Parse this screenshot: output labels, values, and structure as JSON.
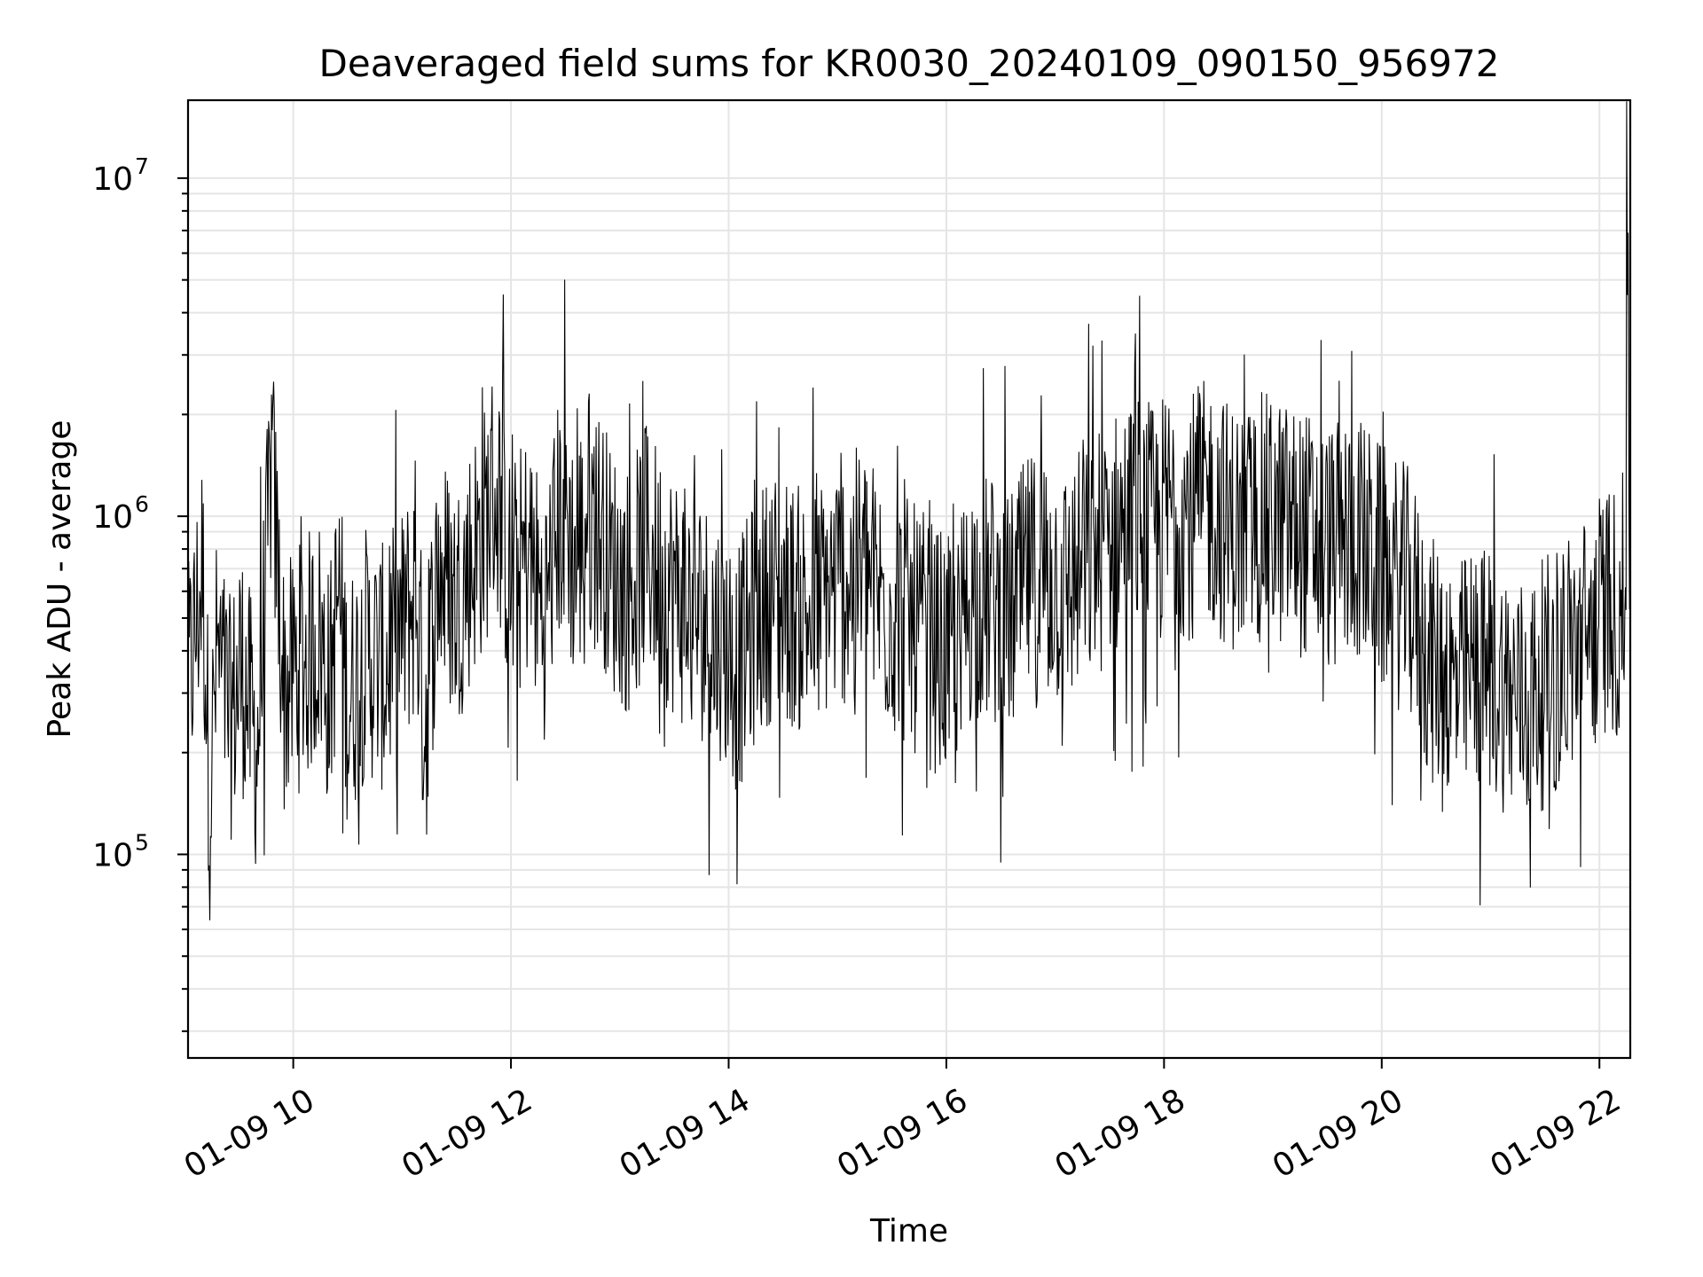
{
  "chart_data": {
    "type": "line",
    "title": "Deaveraged field sums for KR0030_20240109_090150_956972",
    "xlabel": "Time",
    "ylabel": "Peak ADU - average",
    "y_scale": "log",
    "ylim": [
      25000,
      17000000
    ],
    "xlim": [
      "2024-01-09 09:02",
      "2024-01-09 22:17"
    ],
    "grid": true,
    "x_ticks": [
      {
        "t": "2024-01-09 10:00",
        "label": "01-09 10"
      },
      {
        "t": "2024-01-09 12:00",
        "label": "01-09 12"
      },
      {
        "t": "2024-01-09 14:00",
        "label": "01-09 14"
      },
      {
        "t": "2024-01-09 16:00",
        "label": "01-09 16"
      },
      {
        "t": "2024-01-09 18:00",
        "label": "01-09 18"
      },
      {
        "t": "2024-01-09 20:00",
        "label": "01-09 20"
      },
      {
        "t": "2024-01-09 22:00",
        "label": "01-09 22"
      }
    ],
    "y_ticks": [
      {
        "value": 100000,
        "base": "10",
        "exp": "5"
      },
      {
        "value": 1000000,
        "base": "10",
        "exp": "6"
      },
      {
        "value": 10000000,
        "base": "10",
        "exp": "7"
      }
    ],
    "series": [
      {
        "color": "#000000",
        "x": [
          "2024-01-09 09:02",
          "2024-01-09 09:10",
          "2024-01-09 09:14",
          "2024-01-09 09:18",
          "2024-01-09 09:25",
          "2024-01-09 09:32",
          "2024-01-09 09:40",
          "2024-01-09 09:44",
          "2024-01-09 09:48",
          "2024-01-09 09:55",
          "2024-01-09 10:02",
          "2024-01-09 10:10",
          "2024-01-09 10:14",
          "2024-01-09 10:20",
          "2024-01-09 10:25",
          "2024-01-09 10:30",
          "2024-01-09 10:40",
          "2024-01-09 10:50",
          "2024-01-09 11:00",
          "2024-01-09 11:08",
          "2024-01-09 11:12",
          "2024-01-09 11:20",
          "2024-01-09 11:30",
          "2024-01-09 11:40",
          "2024-01-09 11:45",
          "2024-01-09 11:50",
          "2024-01-09 11:55",
          "2024-01-09 12:00",
          "2024-01-09 12:10",
          "2024-01-09 12:18",
          "2024-01-09 12:25",
          "2024-01-09 12:30",
          "2024-01-09 12:35",
          "2024-01-09 12:42",
          "2024-01-09 12:50",
          "2024-01-09 12:55",
          "2024-01-09 13:05",
          "2024-01-09 13:15",
          "2024-01-09 13:25",
          "2024-01-09 13:35",
          "2024-01-09 13:45",
          "2024-01-09 13:55",
          "2024-01-09 14:00",
          "2024-01-09 14:05",
          "2024-01-09 14:15",
          "2024-01-09 14:25",
          "2024-01-09 14:35",
          "2024-01-09 14:45",
          "2024-01-09 14:55",
          "2024-01-09 15:05",
          "2024-01-09 15:15",
          "2024-01-09 15:25",
          "2024-01-09 15:35",
          "2024-01-09 15:45",
          "2024-01-09 15:55",
          "2024-01-09 16:05",
          "2024-01-09 16:10",
          "2024-01-09 16:15",
          "2024-01-09 16:25",
          "2024-01-09 16:35",
          "2024-01-09 16:45",
          "2024-01-09 16:55",
          "2024-01-09 17:05",
          "2024-01-09 17:15",
          "2024-01-09 17:25",
          "2024-01-09 17:35",
          "2024-01-09 17:45",
          "2024-01-09 17:55",
          "2024-01-09 18:05",
          "2024-01-09 18:15",
          "2024-01-09 18:25",
          "2024-01-09 18:35",
          "2024-01-09 18:45",
          "2024-01-09 18:55",
          "2024-01-09 19:05",
          "2024-01-09 19:15",
          "2024-01-09 19:25",
          "2024-01-09 19:35",
          "2024-01-09 19:45",
          "2024-01-09 19:55",
          "2024-01-09 20:05",
          "2024-01-09 20:15",
          "2024-01-09 20:25",
          "2024-01-09 20:30",
          "2024-01-09 20:35",
          "2024-01-09 20:40",
          "2024-01-09 20:50",
          "2024-01-09 21:00",
          "2024-01-09 21:10",
          "2024-01-09 21:20",
          "2024-01-09 21:25",
          "2024-01-09 21:35",
          "2024-01-09 21:45",
          "2024-01-09 21:55",
          "2024-01-09 22:00",
          "2024-01-09 22:05",
          "2024-01-09 22:10",
          "2024-01-09 22:14",
          "2024-01-09 22:15",
          "2024-01-09 22:17"
        ],
        "values": [
          300000,
          700000,
          150000,
          400000,
          250000,
          350000,
          200000,
          500000,
          1500000,
          300000,
          350000,
          400000,
          450000,
          300000,
          600000,
          280000,
          400000,
          350000,
          450000,
          600000,
          250000,
          700000,
          550000,
          800000,
          900000,
          1200000,
          1000000,
          600000,
          800000,
          500000,
          900000,
          1100000,
          700000,
          1000000,
          900000,
          700000,
          600000,
          800000,
          650000,
          550000,
          500000,
          450000,
          400000,
          350000,
          500000,
          600000,
          550000,
          500000,
          600000,
          650000,
          700000,
          550000,
          500000,
          450000,
          400000,
          350000,
          500000,
          600000,
          550000,
          500000,
          650000,
          700000,
          600000,
          700000,
          800000,
          900000,
          1000000,
          900000,
          1100000,
          1000000,
          1100000,
          950000,
          900000,
          1000000,
          950000,
          900000,
          850000,
          800000,
          900000,
          750000,
          650000,
          600000,
          400000,
          350000,
          380000,
          300000,
          350000,
          350000,
          300000,
          280000,
          300000,
          350000,
          400000,
          450000,
          500000,
          550000,
          500000,
          600000,
          12500000,
          600000
        ]
      }
    ]
  }
}
